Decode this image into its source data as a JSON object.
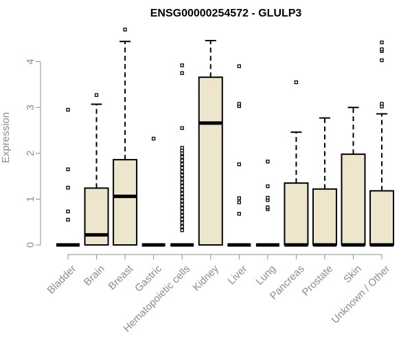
{
  "chart_data": {
    "type": "boxplot",
    "title": "ENSG00000254572 - GLULP3",
    "xlabel": "",
    "ylabel": "Expression",
    "ylim": [
      0,
      4.7
    ],
    "yticks": [
      0,
      1,
      2,
      3,
      4
    ],
    "box_fill": "#ede6cc",
    "categories": [
      "Bladder",
      "Brain",
      "Breast",
      "Gastric",
      "Hematopoietic cells",
      "Kidney",
      "Liver",
      "Lung",
      "Pancreas",
      "Prostate",
      "Skin",
      "Unknown / Other"
    ],
    "boxes": [
      {
        "q1": 0,
        "median": 0,
        "q3": 0,
        "whisker_low": 0,
        "whisker_high": 0,
        "outliers": [
          0.55,
          0.73,
          1.25,
          1.65,
          2.95
        ]
      },
      {
        "q1": 0,
        "median": 0.22,
        "q3": 1.24,
        "whisker_low": 0,
        "whisker_high": 3.07,
        "outliers": [
          3.27
        ]
      },
      {
        "q1": 0,
        "median": 1.06,
        "q3": 1.86,
        "whisker_low": 0,
        "whisker_high": 4.44,
        "outliers": [
          4.7
        ]
      },
      {
        "q1": 0,
        "median": 0,
        "q3": 0,
        "whisker_low": 0,
        "whisker_high": 0,
        "outliers": [
          2.32
        ]
      },
      {
        "q1": 0,
        "median": 0,
        "q3": 0,
        "whisker_low": 0,
        "whisker_high": 0,
        "outliers": [
          0.32,
          0.4,
          0.48,
          0.56,
          0.64,
          0.72,
          0.8,
          0.88,
          0.96,
          1.04,
          1.12,
          1.2,
          1.28,
          1.36,
          1.44,
          1.52,
          1.6,
          1.68,
          1.76,
          1.84,
          1.92,
          2.0,
          2.06,
          2.12,
          2.55,
          3.75,
          3.92
        ]
      },
      {
        "q1": 0,
        "median": 2.66,
        "q3": 3.66,
        "whisker_low": 0,
        "whisker_high": 4.46,
        "outliers": []
      },
      {
        "q1": 0,
        "median": 0,
        "q3": 0,
        "whisker_low": 0,
        "whisker_high": 0,
        "outliers": [
          0.68,
          0.93,
          1.02,
          1.76,
          3.03,
          3.08,
          3.9
        ]
      },
      {
        "q1": 0,
        "median": 0,
        "q3": 0,
        "whisker_low": 0,
        "whisker_high": 0,
        "outliers": [
          0.78,
          0.82,
          0.98,
          1.03,
          1.28,
          1.82
        ]
      },
      {
        "q1": 0,
        "median": 0,
        "q3": 1.35,
        "whisker_low": 0,
        "whisker_high": 2.46,
        "outliers": [
          3.55
        ]
      },
      {
        "q1": 0,
        "median": 0,
        "q3": 1.22,
        "whisker_low": 0,
        "whisker_high": 2.77,
        "outliers": []
      },
      {
        "q1": 0,
        "median": 0,
        "q3": 1.98,
        "whisker_low": 0,
        "whisker_high": 3.0,
        "outliers": []
      },
      {
        "q1": 0,
        "median": 0,
        "q3": 1.18,
        "whisker_low": 0,
        "whisker_high": 2.86,
        "outliers": [
          3.02,
          3.08,
          4.03,
          4.23,
          4.27,
          4.42
        ]
      }
    ]
  }
}
